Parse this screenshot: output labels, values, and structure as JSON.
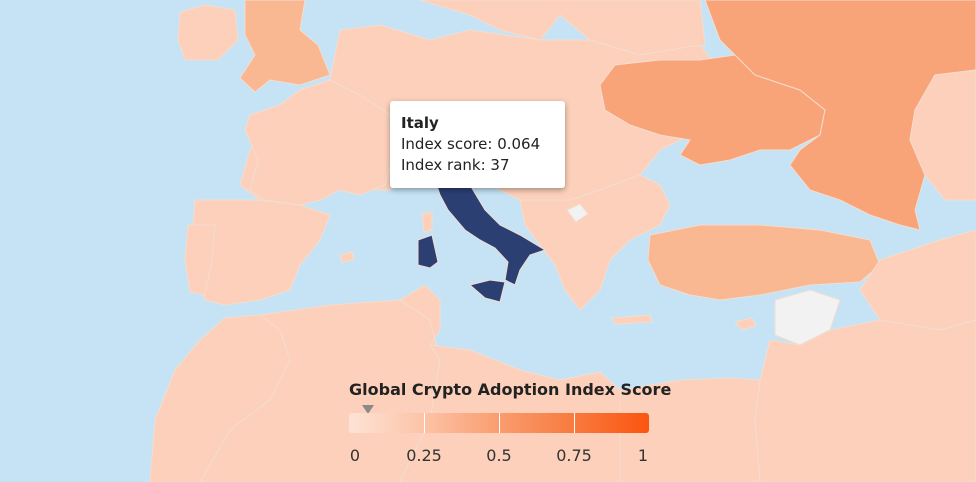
{
  "map": {
    "colors": {
      "sea": "#c5e3f5",
      "very_low": "#fde3d6",
      "low": "#fcd0ba",
      "mid": "#fab892",
      "high": "#f8a378",
      "no_data": "#f2f2f2",
      "selected": "#2b3f73"
    }
  },
  "tooltip": {
    "country": "Italy",
    "score_text": "Index score: 0.064",
    "rank_text": "Index rank: 37"
  },
  "legend": {
    "title": "Global Crypto Adoption Index Score",
    "ticks": [
      "0",
      "0.25",
      "0.5",
      "0.75",
      "1"
    ],
    "marker_value": 0.064
  }
}
